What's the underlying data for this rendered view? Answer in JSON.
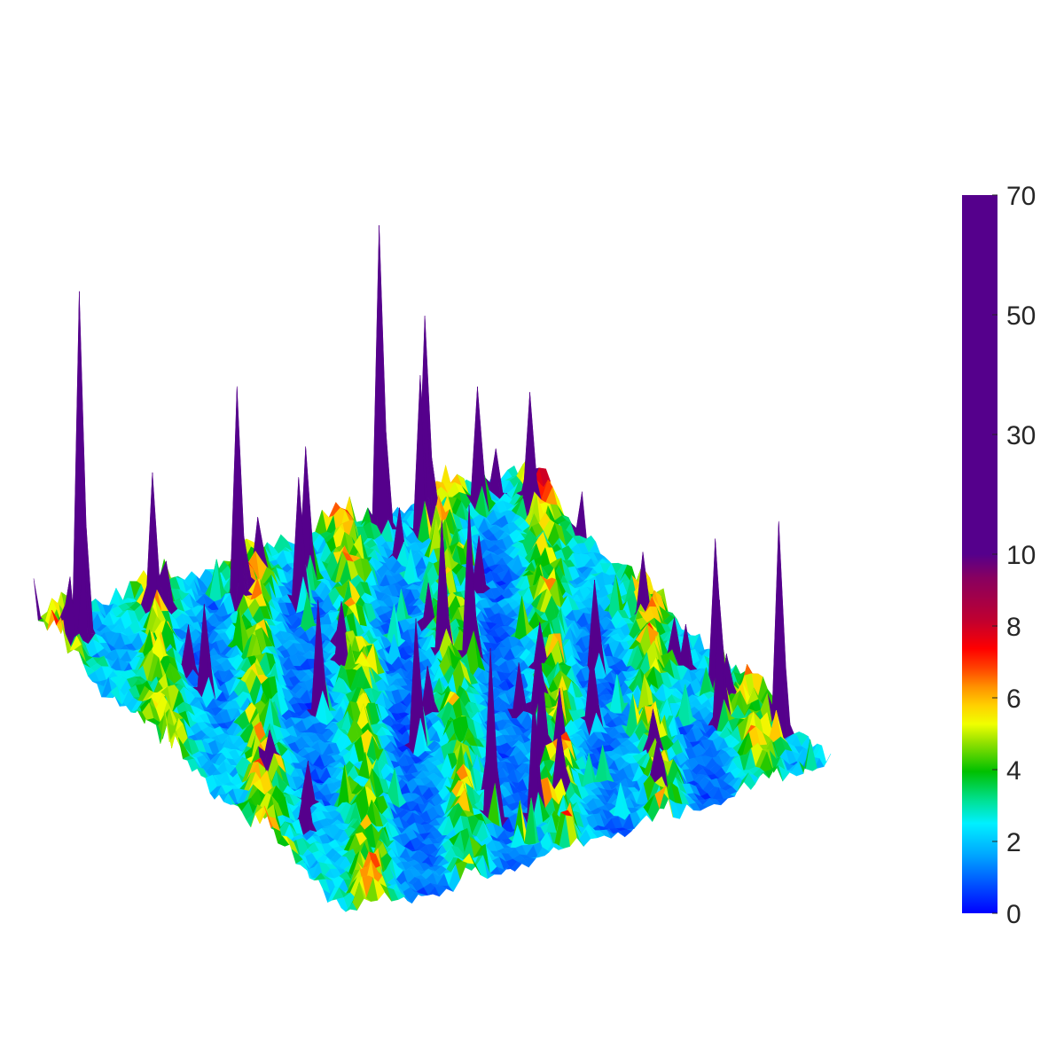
{
  "chart_data": {
    "type": "surface",
    "title": "",
    "xlabel": "",
    "ylabel": "",
    "zlabel": "",
    "axes_visible": false,
    "grid": false,
    "surface": {
      "description_level": "noisy field with scattered sharp peaks",
      "baseline_range": [
        0,
        8
      ],
      "peak_max": 62,
      "peaks": [
        {
          "u": 0.06,
          "v": 0.94,
          "z": 62
        },
        {
          "u": 0.2,
          "v": 0.93,
          "z": 28
        },
        {
          "u": 0.36,
          "v": 0.9,
          "z": 40
        },
        {
          "u": 0.45,
          "v": 0.86,
          "z": 24
        },
        {
          "u": 0.5,
          "v": 0.9,
          "z": 26
        },
        {
          "u": 0.7,
          "v": 0.97,
          "z": 55
        },
        {
          "u": 0.78,
          "v": 0.96,
          "z": 38
        },
        {
          "u": 0.75,
          "v": 0.93,
          "z": 30
        },
        {
          "u": 0.88,
          "v": 0.95,
          "z": 24
        },
        {
          "u": 0.96,
          "v": 0.88,
          "z": 24
        },
        {
          "u": 0.62,
          "v": 0.55,
          "z": 30
        },
        {
          "u": 0.58,
          "v": 0.6,
          "z": 26
        },
        {
          "u": 0.4,
          "v": 0.4,
          "z": 24
        },
        {
          "u": 0.3,
          "v": 0.55,
          "z": 22
        },
        {
          "u": 0.8,
          "v": 0.45,
          "z": 18
        },
        {
          "u": 0.55,
          "v": 0.25,
          "z": 20
        },
        {
          "u": 0.38,
          "v": 0.15,
          "z": 32
        },
        {
          "u": 0.45,
          "v": 0.12,
          "z": 24
        },
        {
          "u": 0.96,
          "v": 0.3,
          "z": 28
        },
        {
          "u": 0.99,
          "v": 0.15,
          "z": 38
        },
        {
          "u": 0.9,
          "v": 0.2,
          "z": 24
        },
        {
          "u": 0.15,
          "v": 0.7,
          "z": 18
        },
        {
          "u": 0.7,
          "v": 0.3,
          "z": 16
        }
      ]
    },
    "colorbar": {
      "ticks": [
        "0",
        "2",
        "4",
        "6",
        "8",
        "10",
        "30",
        "50",
        "70"
      ],
      "tick_values": [
        0,
        2,
        4,
        6,
        8,
        10,
        30,
        50,
        70
      ],
      "range": [
        0,
        70
      ],
      "note_scale": "piecewise: 0-10 occupies lower half, 10-70 upper half",
      "colormap": [
        "#0000ff",
        "#00a2ff",
        "#00ffff",
        "#00c000",
        "#ffff00",
        "#ff8000",
        "#ff0000",
        "#a00060",
        "#55008c"
      ]
    }
  }
}
